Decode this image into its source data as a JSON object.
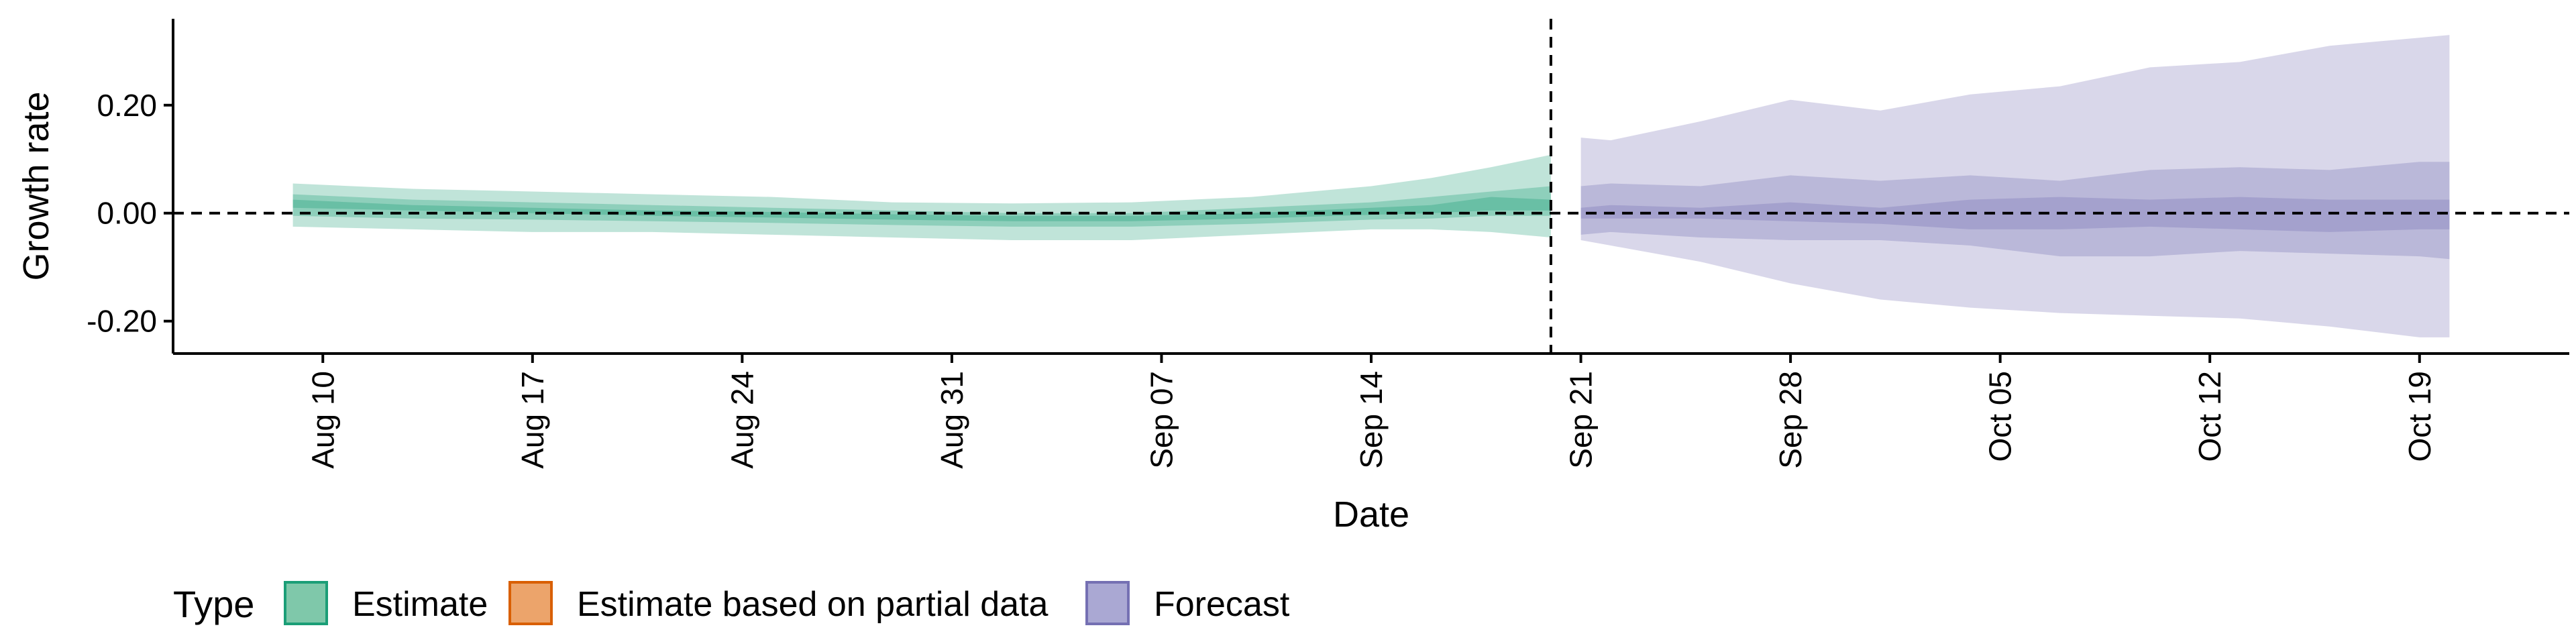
{
  "chart_data": {
    "type": "area",
    "xlabel": "Date",
    "ylabel": "Growth rate",
    "x_range": [
      "2020-08-05",
      "2020-10-24"
    ],
    "ylim": [
      -0.26,
      0.36
    ],
    "y_ticks": [
      -0.2,
      0.0,
      0.2
    ],
    "y_tick_labels": [
      "-0.20",
      "0.00",
      "0.20"
    ],
    "x_ticks": [
      "2020-08-10",
      "2020-08-17",
      "2020-08-24",
      "2020-08-31",
      "2020-09-07",
      "2020-09-14",
      "2020-09-21",
      "2020-09-28",
      "2020-10-05",
      "2020-10-12",
      "2020-10-19"
    ],
    "x_tick_labels": [
      "Aug 10",
      "Aug 17",
      "Aug 24",
      "Aug 31",
      "Sep 07",
      "Sep 14",
      "Sep 21",
      "Sep 28",
      "Oct 05",
      "Oct 12",
      "Oct 19"
    ],
    "reference_lines": {
      "horizontal_y": 0.0,
      "vertical_date": "2020-09-20"
    },
    "grid": false,
    "legend": {
      "position": "bottom",
      "title": "Type",
      "entries": [
        {
          "label": "Estimate",
          "fill": "#7fc8aa",
          "stroke": "#1b9e77"
        },
        {
          "label": "Estimate based on partial data",
          "fill": "#eca46b",
          "stroke": "#d95f02"
        },
        {
          "label": "Forecast",
          "fill": "#aaa8d3",
          "stroke": "#7570b3"
        }
      ]
    },
    "series": [
      {
        "name": "Estimate",
        "color": "#1b9e77",
        "dates": [
          "2020-08-09",
          "2020-08-13",
          "2020-08-17",
          "2020-08-21",
          "2020-08-25",
          "2020-08-29",
          "2020-09-02",
          "2020-09-06",
          "2020-09-10",
          "2020-09-14",
          "2020-09-16",
          "2020-09-18",
          "2020-09-20"
        ],
        "outer_upper": [
          0.055,
          0.045,
          0.04,
          0.035,
          0.03,
          0.02,
          0.018,
          0.02,
          0.03,
          0.05,
          0.065,
          0.085,
          0.108
        ],
        "outer_lower": [
          -0.025,
          -0.03,
          -0.035,
          -0.035,
          -0.04,
          -0.045,
          -0.05,
          -0.05,
          -0.04,
          -0.03,
          -0.03,
          -0.035,
          -0.045
        ],
        "mid_upper": [
          0.035,
          0.025,
          0.02,
          0.015,
          0.01,
          0.005,
          0.0,
          0.0,
          0.01,
          0.02,
          0.03,
          0.04,
          0.05
        ],
        "mid_lower": [
          -0.005,
          -0.01,
          -0.012,
          -0.015,
          -0.018,
          -0.022,
          -0.025,
          -0.025,
          -0.02,
          -0.012,
          -0.01,
          -0.005,
          -0.005
        ],
        "inner_upper": [
          0.025,
          0.015,
          0.01,
          0.005,
          0.002,
          -0.002,
          -0.005,
          -0.005,
          0.0,
          0.01,
          0.015,
          0.03,
          0.025
        ],
        "inner_lower": [
          0.01,
          0.005,
          0.0,
          -0.005,
          -0.008,
          -0.012,
          -0.015,
          -0.015,
          -0.01,
          -0.003,
          0.0,
          0.005,
          0.005
        ]
      },
      {
        "name": "Forecast",
        "color": "#7570b3",
        "dates": [
          "2020-09-21",
          "2020-09-22",
          "2020-09-25",
          "2020-09-28",
          "2020-10-01",
          "2020-10-04",
          "2020-10-07",
          "2020-10-10",
          "2020-10-13",
          "2020-10-16",
          "2020-10-19",
          "2020-10-20"
        ],
        "outer_upper": [
          0.14,
          0.135,
          0.17,
          0.21,
          0.19,
          0.22,
          0.235,
          0.27,
          0.28,
          0.31,
          0.325,
          0.33
        ],
        "outer_lower": [
          -0.05,
          -0.06,
          -0.09,
          -0.13,
          -0.16,
          -0.175,
          -0.185,
          -0.19,
          -0.195,
          -0.21,
          -0.23,
          -0.23
        ],
        "mid_upper": [
          0.05,
          0.055,
          0.05,
          0.07,
          0.06,
          0.07,
          0.06,
          0.08,
          0.085,
          0.08,
          0.095,
          0.095
        ],
        "mid_lower": [
          -0.04,
          -0.035,
          -0.045,
          -0.05,
          -0.05,
          -0.06,
          -0.08,
          -0.08,
          -0.07,
          -0.075,
          -0.08,
          -0.085
        ],
        "inner_upper": [
          0.01,
          0.015,
          0.01,
          0.02,
          0.01,
          0.025,
          0.03,
          0.025,
          0.03,
          0.025,
          0.025,
          0.025
        ],
        "inner_lower": [
          -0.01,
          -0.01,
          -0.01,
          -0.015,
          -0.02,
          -0.03,
          -0.03,
          -0.025,
          -0.03,
          -0.035,
          -0.03,
          -0.03
        ]
      }
    ]
  }
}
